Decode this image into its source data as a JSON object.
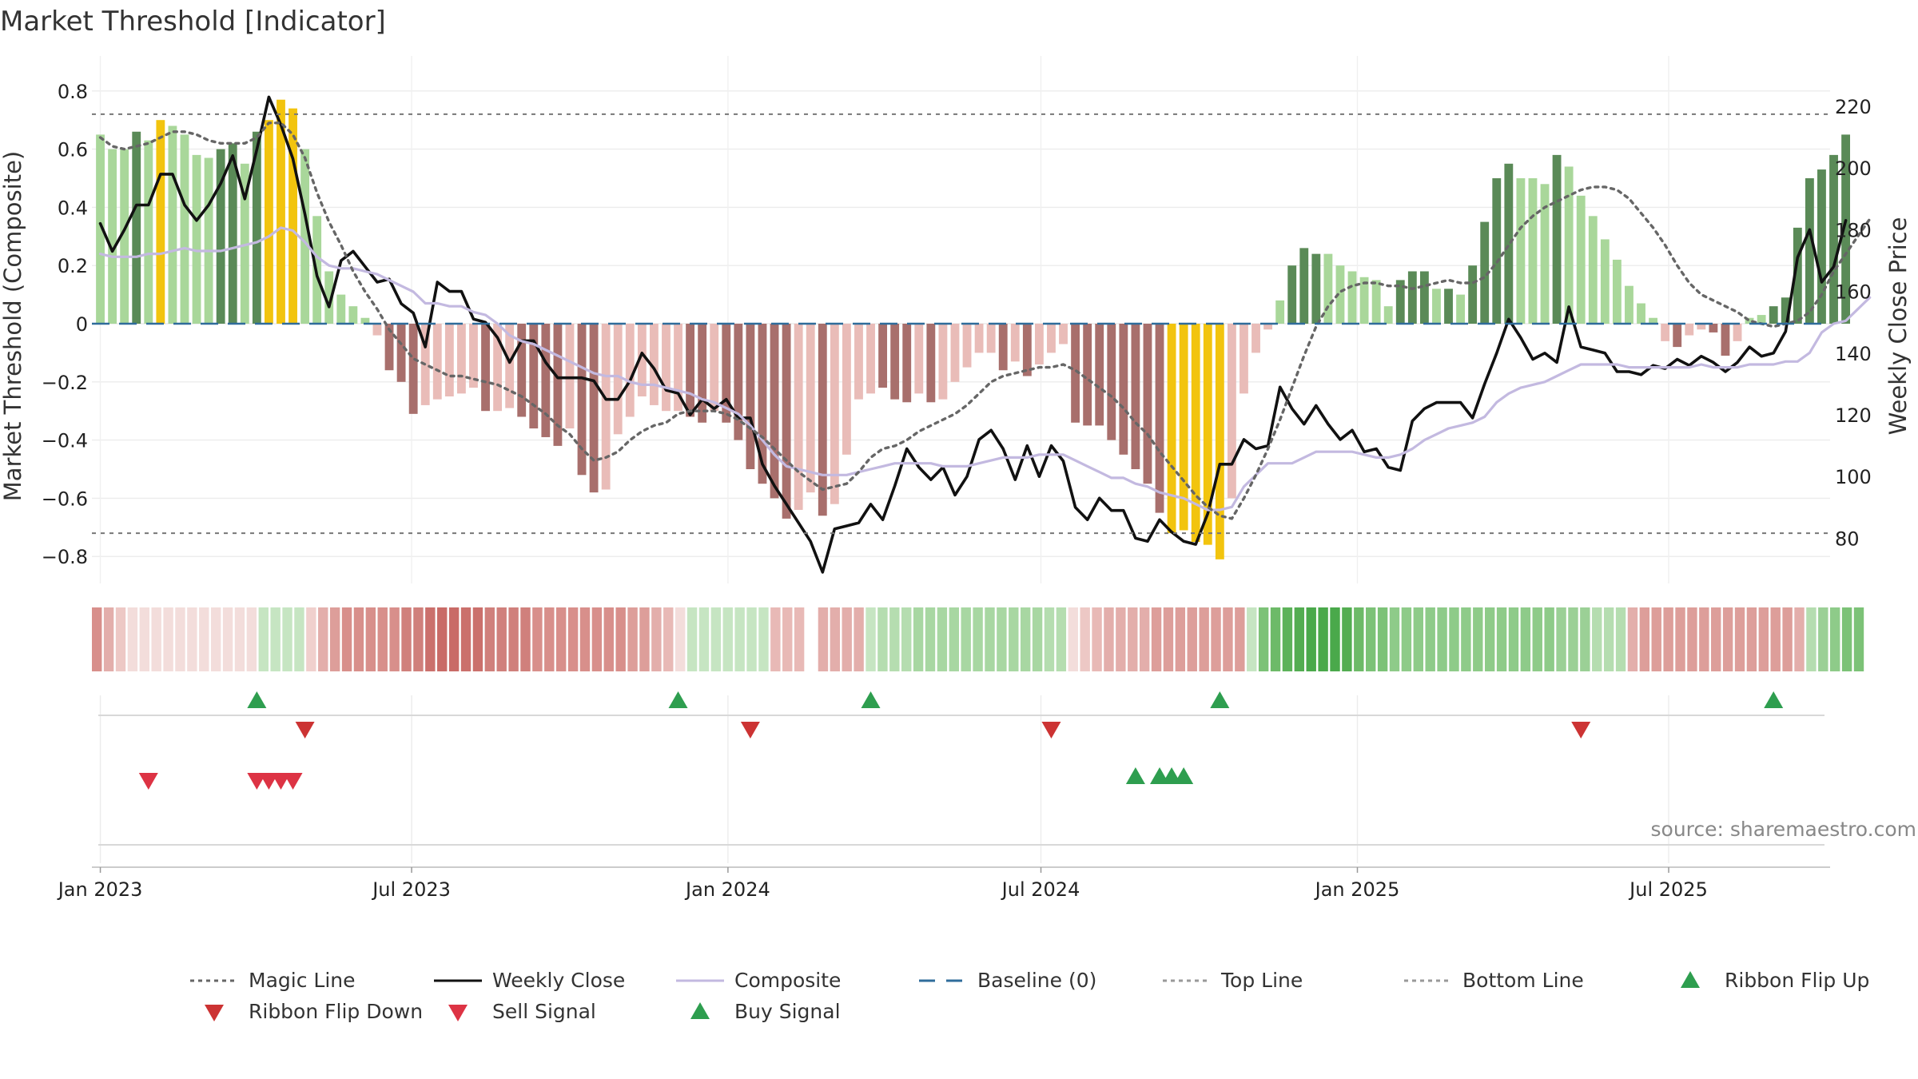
{
  "chart_data": {
    "type": "bar",
    "title": "Market Threshold [Indicator]",
    "ylabel": "Market Threshold (Composite)",
    "y2label": "Weekly Close Price",
    "ylim": [
      -0.9,
      0.9
    ],
    "y2lim": [
      63,
      237
    ],
    "yticks": [
      0.8,
      0.6,
      0.4,
      0.2,
      0,
      -0.2,
      -0.4,
      -0.6,
      -0.8
    ],
    "ytick_labels": [
      "0.8",
      "0.6",
      "0.4",
      "0.2",
      "0",
      "−0.2",
      "−0.4",
      "−0.6",
      "−0.8"
    ],
    "y2ticks": [
      220,
      200,
      180,
      160,
      140,
      120,
      100,
      80
    ],
    "y2tick_labels": [
      "220",
      "200",
      "180",
      "160",
      "140",
      "120",
      "100",
      "80"
    ],
    "xlim_weeks": [
      -0.7,
      143.7
    ],
    "xticks": [
      {
        "label": "Jan 2023",
        "week": 0
      },
      {
        "label": "Jul 2023",
        "week": 25.86
      },
      {
        "label": "Jan 2024",
        "week": 52.14
      },
      {
        "label": "Jul 2024",
        "week": 78.14
      },
      {
        "label": "Jan 2025",
        "week": 104.43
      },
      {
        "label": "Jul 2025",
        "week": 130.29
      }
    ],
    "top_line": 0.72,
    "bottom_line": -0.72,
    "baseline": 0,
    "composite_bars": [
      0.65,
      0.6,
      0.6,
      0.66,
      0.63,
      0.7,
      0.68,
      0.65,
      0.58,
      0.57,
      0.6,
      0.62,
      0.55,
      0.66,
      0.7,
      0.77,
      0.74,
      0.6,
      0.37,
      0.18,
      0.1,
      0.06,
      0.02,
      -0.04,
      -0.16,
      -0.2,
      -0.31,
      -0.28,
      -0.26,
      -0.25,
      -0.24,
      -0.22,
      -0.3,
      -0.3,
      -0.29,
      -0.32,
      -0.36,
      -0.39,
      -0.42,
      -0.36,
      -0.52,
      -0.58,
      -0.57,
      -0.38,
      -0.32,
      -0.25,
      -0.28,
      -0.3,
      -0.3,
      -0.32,
      -0.34,
      -0.3,
      -0.34,
      -0.4,
      -0.5,
      -0.55,
      -0.6,
      -0.67,
      -0.64,
      -0.58,
      -0.66,
      -0.62,
      -0.45,
      -0.26,
      -0.24,
      -0.22,
      -0.26,
      -0.27,
      -0.24,
      -0.27,
      -0.26,
      -0.2,
      -0.15,
      -0.1,
      -0.1,
      -0.16,
      -0.13,
      -0.18,
      -0.14,
      -0.1,
      -0.07,
      -0.34,
      -0.35,
      -0.35,
      -0.4,
      -0.45,
      -0.5,
      -0.55,
      -0.65,
      -0.72,
      -0.71,
      -0.75,
      -0.76,
      -0.81,
      -0.6,
      -0.24,
      -0.1,
      -0.02,
      0.08,
      0.2,
      0.26,
      0.24,
      0.24,
      0.2,
      0.18,
      0.16,
      0.15,
      0.06,
      0.15,
      0.18,
      0.18,
      0.12,
      0.12,
      0.1,
      0.2,
      0.35,
      0.5,
      0.55,
      0.5,
      0.5,
      0.48,
      0.58,
      0.54,
      0.44,
      0.37,
      0.29,
      0.22,
      0.13,
      0.07,
      0.02,
      -0.06,
      -0.08,
      -0.04,
      -0.02,
      -0.03,
      -0.11,
      -0.06,
      0.02,
      0.03,
      0.06,
      0.09,
      0.33,
      0.5,
      0.53,
      0.58,
      0.65
    ],
    "bar_colors": [
      "#a9d79a",
      "#a9d79a",
      "#a9d79a",
      "#5a8a57",
      "#a9d79a",
      "#f2c40e",
      "#a9d79a",
      "#a9d79a",
      "#a9d79a",
      "#a9d79a",
      "#5a8a57",
      "#5a8a57",
      "#a9d79a",
      "#5a8a57",
      "#f2c40e",
      "#f2c40e",
      "#f2c40e",
      "#a9d79a",
      "#a9d79a",
      "#a9d79a",
      "#a9d79a",
      "#a9d79a",
      "#a9d79a",
      "#e9bcb8",
      "#a86f6c",
      "#a86f6c",
      "#a86f6c",
      "#e9bcb8",
      "#e9bcb8",
      "#e9bcb8",
      "#e9bcb8",
      "#e9bcb8",
      "#a86f6c",
      "#e9bcb8",
      "#e9bcb8",
      "#a86f6c",
      "#a86f6c",
      "#a86f6c",
      "#a86f6c",
      "#e9bcb8",
      "#a86f6c",
      "#a86f6c",
      "#e9bcb8",
      "#e9bcb8",
      "#e9bcb8",
      "#e9bcb8",
      "#e9bcb8",
      "#e9bcb8",
      "#e9bcb8",
      "#a86f6c",
      "#a86f6c",
      "#e9bcb8",
      "#a86f6c",
      "#a86f6c",
      "#a86f6c",
      "#a86f6c",
      "#a86f6c",
      "#a86f6c",
      "#e9bcb8",
      "#e9bcb8",
      "#a86f6c",
      "#e9bcb8",
      "#e9bcb8",
      "#e9bcb8",
      "#e9bcb8",
      "#a86f6c",
      "#a86f6c",
      "#a86f6c",
      "#e9bcb8",
      "#a86f6c",
      "#e9bcb8",
      "#e9bcb8",
      "#e9bcb8",
      "#e9bcb8",
      "#e9bcb8",
      "#a86f6c",
      "#e9bcb8",
      "#a86f6c",
      "#e9bcb8",
      "#e9bcb8",
      "#e9bcb8",
      "#a86f6c",
      "#a86f6c",
      "#a86f6c",
      "#a86f6c",
      "#a86f6c",
      "#a86f6c",
      "#a86f6c",
      "#a86f6c",
      "#f2c40e",
      "#f2c40e",
      "#f2c40e",
      "#f2c40e",
      "#f2c40e",
      "#e9bcb8",
      "#e9bcb8",
      "#e9bcb8",
      "#e9bcb8",
      "#a9d79a",
      "#5a8a57",
      "#5a8a57",
      "#5a8a57",
      "#a9d79a",
      "#a9d79a",
      "#a9d79a",
      "#a9d79a",
      "#a9d79a",
      "#a9d79a",
      "#5a8a57",
      "#5a8a57",
      "#5a8a57",
      "#a9d79a",
      "#5a8a57",
      "#a9d79a",
      "#5a8a57",
      "#5a8a57",
      "#5a8a57",
      "#5a8a57",
      "#a9d79a",
      "#a9d79a",
      "#a9d79a",
      "#5a8a57",
      "#a9d79a",
      "#a9d79a",
      "#a9d79a",
      "#a9d79a",
      "#a9d79a",
      "#a9d79a",
      "#a9d79a",
      "#a9d79a",
      "#e9bcb8",
      "#a86f6c",
      "#e9bcb8",
      "#e9bcb8",
      "#a86f6c",
      "#a86f6c",
      "#e9bcb8",
      "#a9d79a",
      "#a9d79a",
      "#5a8a57",
      "#5a8a57",
      "#5a8a57",
      "#5a8a57",
      "#5a8a57",
      "#5a8a57",
      "#5a8a57"
    ],
    "ribbon_colors": [
      "#d88f8b",
      "#e3aeab",
      "#edc8c5",
      "#f3dddb",
      "#f3dddb",
      "#f3dddb",
      "#f3dddb",
      "#f3dddb",
      "#f3dddb",
      "#f3dddb",
      "#f3dddb",
      "#f3dddb",
      "#f3dddb",
      "#f3dddb",
      "#c6e5c2",
      "#c6e5c2",
      "#c6e5c2",
      "#c6e5c2",
      "#f0d0cd",
      "#e3aeab",
      "#dd9e9a",
      "#d88f8b",
      "#d88f8b",
      "#d88f8b",
      "#d88f8b",
      "#d88f8b",
      "#d0807c",
      "#d0807c",
      "#cb706c",
      "#c96b67",
      "#c96b67",
      "#cb706c",
      "#cb706c",
      "#d0807c",
      "#d0807c",
      "#d0807c",
      "#d0807c",
      "#d88f8b",
      "#d88f8b",
      "#d88f8b",
      "#d88f8b",
      "#d88f8b",
      "#d88f8b",
      "#d88f8b",
      "#d88f8b",
      "#dd9e9a",
      "#dd9e9a",
      "#e3aeab",
      "#e8b9b6",
      "#f3dddb",
      "#c6e5c2",
      "#c6e5c2",
      "#c6e5c2",
      "#c6e5c2",
      "#c6e5c2",
      "#c6e5c2",
      "#c6e5c2",
      "#e8b9b6",
      "#e8b9b6",
      "#e8b9b6",
      "#ffffff",
      "#e3aeab",
      "#e3aeab",
      "#e3aeab",
      "#e3aeab",
      "#c6e5c2",
      "#b5ddb0",
      "#b5ddb0",
      "#b5ddb0",
      "#a8d7a2",
      "#a8d7a2",
      "#a8d7a2",
      "#a8d7a2",
      "#a8d7a2",
      "#a8d7a2",
      "#a8d7a2",
      "#a8d7a2",
      "#a8d7a2",
      "#a8d7a2",
      "#a8d7a2",
      "#b5ddb0",
      "#b5ddb0",
      "#f3dddb",
      "#edc8c5",
      "#e8b9b6",
      "#e3aeab",
      "#e3aeab",
      "#e3aeab",
      "#e3aeab",
      "#dd9e9a",
      "#dd9e9a",
      "#dd9e9a",
      "#dd9e9a",
      "#dd9e9a",
      "#dd9e9a",
      "#dd9e9a",
      "#dd9e9a",
      "#c6e5c2",
      "#7cc277",
      "#6dba68",
      "#5db25a",
      "#53ad51",
      "#4aa94b",
      "#4aa94b",
      "#4aa94b",
      "#53ad51",
      "#6dba68",
      "#7cc277",
      "#7cc277",
      "#8ecb89",
      "#8ecb89",
      "#8ecb89",
      "#8ecb89",
      "#8ecb89",
      "#8ecb89",
      "#8ecb89",
      "#8ecb89",
      "#8ecb89",
      "#8ecb89",
      "#8ecb89",
      "#8ecb89",
      "#8ecb89",
      "#8ecb89",
      "#9bd096",
      "#9bd096",
      "#9bd096",
      "#b5ddb0",
      "#b5ddb0",
      "#b5ddb0",
      "#e3aeab",
      "#dd9e9a",
      "#dd9e9a",
      "#dd9e9a",
      "#dd9e9a",
      "#dd9e9a",
      "#dd9e9a",
      "#dd9e9a",
      "#dd9e9a",
      "#dd9e9a",
      "#dd9e9a",
      "#dd9e9a",
      "#dd9e9a",
      "#dd9e9a",
      "#e3aeab",
      "#b5ddb0",
      "#9bd096",
      "#8ecb89",
      "#7cc277",
      "#7cc277"
    ],
    "series": [
      {
        "name": "Weekly Close",
        "color": "#111111",
        "values": [
          182,
          173,
          180,
          188,
          188,
          198,
          198,
          188,
          183,
          188,
          195,
          204,
          190,
          206,
          223,
          214,
          203,
          185,
          165,
          155,
          170,
          173,
          168,
          163,
          164,
          156,
          153,
          142,
          163,
          160,
          160,
          151,
          150,
          145,
          137,
          144,
          144,
          137,
          132,
          132,
          132,
          131,
          125,
          125,
          131,
          140,
          135,
          128,
          127,
          120,
          125,
          122,
          125,
          119,
          119,
          104,
          97,
          91,
          85,
          79,
          69,
          83,
          84,
          85,
          91,
          86,
          97,
          109,
          103,
          99,
          103,
          94,
          100,
          112,
          115,
          109,
          99,
          110,
          100,
          110,
          105,
          90,
          86,
          93,
          89,
          89,
          80,
          79,
          86,
          82,
          79,
          78,
          88,
          104,
          104,
          112,
          109,
          110,
          129,
          122,
          117,
          123,
          117,
          112,
          115,
          108,
          109,
          103,
          102,
          118,
          122,
          124,
          124,
          124,
          119,
          130,
          140,
          151,
          145,
          138,
          140,
          137,
          155,
          142,
          141,
          140,
          134,
          134,
          133,
          136,
          135,
          138,
          136,
          139,
          137,
          134,
          137,
          142,
          139,
          140,
          147,
          171,
          180,
          163,
          168,
          183
        ]
      },
      {
        "name": "Composite",
        "color": "#c3b9e0",
        "values": [
          0.24,
          0.23,
          0.23,
          0.23,
          0.24,
          0.24,
          0.25,
          0.26,
          0.25,
          0.25,
          0.25,
          0.26,
          0.27,
          0.28,
          0.3,
          0.33,
          0.32,
          0.28,
          0.23,
          0.2,
          0.19,
          0.19,
          0.18,
          0.17,
          0.15,
          0.13,
          0.11,
          0.07,
          0.07,
          0.06,
          0.06,
          0.04,
          0.03,
          0.0,
          -0.04,
          -0.06,
          -0.07,
          -0.09,
          -0.11,
          -0.13,
          -0.15,
          -0.17,
          -0.18,
          -0.18,
          -0.2,
          -0.21,
          -0.21,
          -0.22,
          -0.23,
          -0.24,
          -0.26,
          -0.27,
          -0.29,
          -0.31,
          -0.35,
          -0.4,
          -0.45,
          -0.49,
          -0.5,
          -0.51,
          -0.52,
          -0.52,
          -0.52,
          -0.51,
          -0.5,
          -0.49,
          -0.48,
          -0.48,
          -0.48,
          -0.48,
          -0.49,
          -0.49,
          -0.49,
          -0.48,
          -0.47,
          -0.46,
          -0.46,
          -0.46,
          -0.45,
          -0.45,
          -0.45,
          -0.47,
          -0.49,
          -0.51,
          -0.53,
          -0.53,
          -0.55,
          -0.56,
          -0.58,
          -0.59,
          -0.6,
          -0.62,
          -0.64,
          -0.64,
          -0.63,
          -0.56,
          -0.52,
          -0.48,
          -0.48,
          -0.48,
          -0.46,
          -0.44,
          -0.44,
          -0.44,
          -0.44,
          -0.45,
          -0.46,
          -0.46,
          -0.45,
          -0.43,
          -0.4,
          -0.38,
          -0.36,
          -0.35,
          -0.34,
          -0.32,
          -0.27,
          -0.24,
          -0.22,
          -0.21,
          -0.2,
          -0.18,
          -0.16,
          -0.14,
          -0.14,
          -0.14,
          -0.14,
          -0.15,
          -0.15,
          -0.15,
          -0.15,
          -0.15,
          -0.15,
          -0.14,
          -0.15,
          -0.15,
          -0.15,
          -0.14,
          -0.14,
          -0.14,
          -0.13,
          -0.13,
          -0.1,
          -0.03,
          0.0,
          0.01,
          0.05,
          0.09
        ]
      },
      {
        "name": "Magic Line",
        "color": "#666666",
        "style": "dotted",
        "values": [
          0.64,
          0.61,
          0.6,
          0.61,
          0.62,
          0.64,
          0.66,
          0.66,
          0.65,
          0.63,
          0.62,
          0.62,
          0.62,
          0.64,
          0.69,
          0.69,
          0.65,
          0.57,
          0.45,
          0.35,
          0.27,
          0.18,
          0.11,
          0.05,
          -0.02,
          -0.07,
          -0.12,
          -0.14,
          -0.16,
          -0.18,
          -0.18,
          -0.19,
          -0.2,
          -0.21,
          -0.23,
          -0.25,
          -0.28,
          -0.31,
          -0.35,
          -0.38,
          -0.43,
          -0.47,
          -0.46,
          -0.44,
          -0.4,
          -0.37,
          -0.35,
          -0.34,
          -0.31,
          -0.3,
          -0.3,
          -0.3,
          -0.31,
          -0.33,
          -0.36,
          -0.39,
          -0.43,
          -0.47,
          -0.51,
          -0.54,
          -0.57,
          -0.56,
          -0.55,
          -0.51,
          -0.46,
          -0.43,
          -0.42,
          -0.4,
          -0.37,
          -0.35,
          -0.33,
          -0.31,
          -0.28,
          -0.24,
          -0.2,
          -0.18,
          -0.17,
          -0.16,
          -0.15,
          -0.15,
          -0.14,
          -0.16,
          -0.19,
          -0.22,
          -0.25,
          -0.29,
          -0.34,
          -0.38,
          -0.44,
          -0.49,
          -0.54,
          -0.59,
          -0.63,
          -0.66,
          -0.67,
          -0.6,
          -0.52,
          -0.43,
          -0.33,
          -0.22,
          -0.11,
          -0.01,
          0.06,
          0.11,
          0.13,
          0.14,
          0.14,
          0.13,
          0.13,
          0.12,
          0.13,
          0.14,
          0.15,
          0.14,
          0.14,
          0.16,
          0.21,
          0.27,
          0.33,
          0.37,
          0.4,
          0.42,
          0.44,
          0.46,
          0.47,
          0.47,
          0.46,
          0.43,
          0.38,
          0.33,
          0.27,
          0.2,
          0.14,
          0.1,
          0.08,
          0.06,
          0.04,
          0.01,
          0.0,
          -0.01,
          0.0,
          0.01,
          0.04,
          0.1,
          0.18,
          0.24,
          0.3,
          0.36
        ]
      }
    ],
    "signals": {
      "ribbon_flip_up": [
        13,
        48,
        64,
        93,
        139
      ],
      "ribbon_flip_down": [
        17,
        54,
        79,
        123
      ],
      "sell_signal": [
        4,
        13,
        14,
        15,
        16
      ],
      "buy_signal": [
        86,
        88,
        89,
        90
      ]
    },
    "legend": [
      {
        "label": "Magic Line",
        "kind": "dotted",
        "color": "#666666"
      },
      {
        "label": "Weekly Close",
        "kind": "solid",
        "color": "#111111"
      },
      {
        "label": "Composite",
        "kind": "solid",
        "color": "#c3b9e0"
      },
      {
        "label": "Baseline (0)",
        "kind": "dashed",
        "color": "#2f6c9b"
      },
      {
        "label": "Top Line",
        "kind": "dotted",
        "color": "#999999"
      },
      {
        "label": "Bottom Line",
        "kind": "dotted",
        "color": "#999999"
      },
      {
        "label": "Ribbon Flip Up",
        "kind": "tri-up",
        "color": "#2e9e4f"
      },
      {
        "label": "Ribbon Flip Down",
        "kind": "tri-down",
        "color": "#cc3333"
      },
      {
        "label": "Sell Signal",
        "kind": "tri-down",
        "color": "#dd3344"
      },
      {
        "label": "Buy Signal",
        "kind": "tri-up",
        "color": "#2e9e4f"
      }
    ],
    "legend_position": "bottom",
    "source": "source: sharemaestro.com"
  }
}
